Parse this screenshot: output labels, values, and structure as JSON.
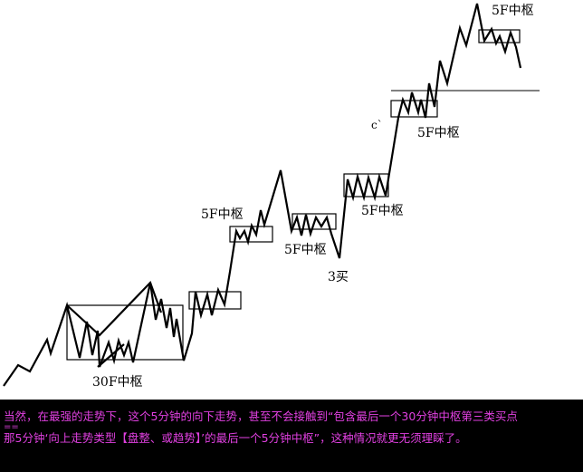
{
  "labels": {
    "zs_30f": "30F中枢",
    "zs_5f_1": "5F中枢",
    "zs_5f_2": "5F中枢",
    "zs_5f_3": "5F中枢",
    "zs_5f_4": "5F中枢",
    "zs_5f_5": "5F中枢",
    "buy3": "3买",
    "c": "c`"
  },
  "caption": {
    "line1": "当然，在最强的走势下，这个5分钟的向下走势，甚至不会接触到“包含最后一个30分钟中枢第三类买点",
    "line2": "==",
    "line3": "那5分钟‘向上走势类型【盘整、或趋势】’的最后一个5分钟中枢”，这种情况就更无须理睬了。"
  },
  "colors": {
    "caption_text": "#e040e0",
    "caption_bg": "#000000",
    "line": "#000000"
  }
}
